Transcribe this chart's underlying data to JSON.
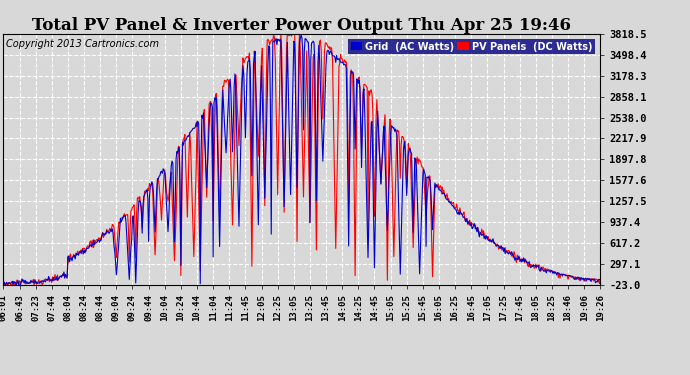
{
  "title": "Total PV Panel & Inverter Power Output Thu Apr 25 19:46",
  "copyright": "Copyright 2013 Cartronics.com",
  "legend_blue": "Grid  (AC Watts)",
  "legend_red": "PV Panels  (DC Watts)",
  "ylim": [
    -23.0,
    3818.5
  ],
  "yticks": [
    3818.5,
    3498.4,
    3178.3,
    2858.1,
    2538.0,
    2217.9,
    1897.8,
    1577.6,
    1257.5,
    937.4,
    617.2,
    297.1,
    -23.0
  ],
  "xtick_labels": [
    "06:01",
    "06:43",
    "07:23",
    "07:44",
    "08:04",
    "08:24",
    "08:44",
    "09:04",
    "09:24",
    "09:44",
    "10:04",
    "10:24",
    "10:44",
    "11:04",
    "11:24",
    "11:45",
    "12:05",
    "12:25",
    "13:05",
    "13:25",
    "13:45",
    "14:05",
    "14:25",
    "14:45",
    "15:05",
    "15:25",
    "15:45",
    "16:05",
    "16:25",
    "16:45",
    "17:05",
    "17:25",
    "17:45",
    "18:05",
    "18:25",
    "18:46",
    "19:06",
    "19:26"
  ],
  "bg_color": "#d8d8d8",
  "plot_bg_color": "#d8d8d8",
  "grid_color": "#ffffff",
  "blue_color": "#0000cc",
  "red_color": "#ff0000",
  "title_fontsize": 12,
  "copyright_fontsize": 7,
  "tick_fontsize": 7.5,
  "legend_bg": "#000080"
}
